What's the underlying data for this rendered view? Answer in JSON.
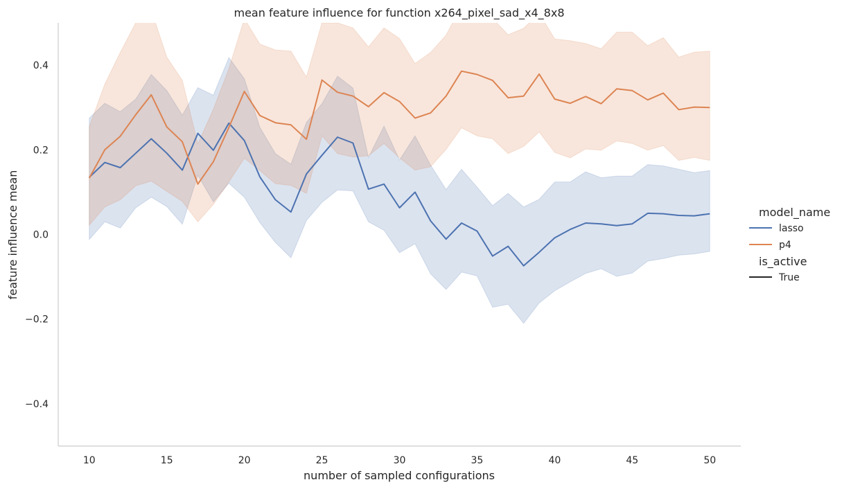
{
  "chart_data": {
    "type": "line",
    "title": "mean feature influence for function x264_pixel_sad_x4_8x8",
    "xlabel": "number of sampled configurations",
    "ylabel": "feature influence mean",
    "xlim": [
      8,
      52
    ],
    "ylim": [
      -0.5,
      0.5
    ],
    "xticks": [
      10,
      15,
      20,
      25,
      30,
      35,
      40,
      45,
      50
    ],
    "yticks": [
      -0.4,
      -0.2,
      0.0,
      0.2,
      0.4
    ],
    "ytick_labels": [
      "−0.4",
      "−0.2",
      "0.0",
      "0.2",
      "0.4"
    ],
    "grid": false,
    "legend": {
      "placement": "right",
      "hue_title": "model_name",
      "style_title": "is_active",
      "style_entries": [
        {
          "label": "True",
          "color": "#262626"
        }
      ]
    },
    "x": [
      10,
      11,
      12,
      13,
      14,
      15,
      16,
      17,
      18,
      19,
      20,
      21,
      22,
      23,
      24,
      25,
      26,
      27,
      28,
      29,
      30,
      31,
      32,
      33,
      34,
      35,
      36,
      37,
      38,
      39,
      40,
      41,
      42,
      43,
      44,
      45,
      46,
      47,
      48,
      49,
      50
    ],
    "series": [
      {
        "name": "lasso",
        "color": "#4c72b0",
        "values": [
          0.135,
          0.17,
          0.158,
          0.192,
          0.226,
          0.192,
          0.152,
          0.239,
          0.199,
          0.263,
          0.222,
          0.136,
          0.082,
          0.053,
          0.143,
          0.187,
          0.23,
          0.216,
          0.107,
          0.119,
          0.063,
          0.1,
          0.032,
          -0.011,
          0.027,
          0.008,
          -0.051,
          -0.028,
          -0.074,
          -0.042,
          -0.008,
          0.012,
          0.027,
          0.025,
          0.021,
          0.025,
          0.05,
          0.049,
          0.045,
          0.044,
          0.049
        ],
        "ci_low": [
          -0.012,
          0.03,
          0.015,
          0.063,
          0.088,
          0.066,
          0.024,
          0.14,
          0.077,
          0.121,
          0.088,
          0.028,
          -0.019,
          -0.055,
          0.033,
          0.076,
          0.105,
          0.103,
          0.03,
          0.01,
          -0.043,
          -0.022,
          -0.093,
          -0.13,
          -0.089,
          -0.098,
          -0.172,
          -0.165,
          -0.21,
          -0.162,
          -0.133,
          -0.112,
          -0.092,
          -0.081,
          -0.099,
          -0.091,
          -0.063,
          -0.057,
          -0.049,
          -0.046,
          -0.04
        ],
        "ci_high": [
          0.275,
          0.31,
          0.29,
          0.32,
          0.378,
          0.34,
          0.282,
          0.347,
          0.329,
          0.418,
          0.368,
          0.253,
          0.191,
          0.166,
          0.265,
          0.309,
          0.374,
          0.346,
          0.182,
          0.256,
          0.176,
          0.233,
          0.164,
          0.106,
          0.154,
          0.112,
          0.068,
          0.097,
          0.065,
          0.083,
          0.124,
          0.124,
          0.148,
          0.134,
          0.138,
          0.138,
          0.165,
          0.162,
          0.154,
          0.146,
          0.151
        ]
      },
      {
        "name": "p4",
        "color": "#dd8452",
        "values": [
          0.133,
          0.2,
          0.232,
          0.283,
          0.33,
          0.254,
          0.219,
          0.119,
          0.172,
          0.253,
          0.338,
          0.281,
          0.264,
          0.259,
          0.225,
          0.365,
          0.336,
          0.327,
          0.302,
          0.335,
          0.314,
          0.275,
          0.287,
          0.327,
          0.386,
          0.378,
          0.364,
          0.323,
          0.327,
          0.379,
          0.32,
          0.31,
          0.326,
          0.309,
          0.344,
          0.34,
          0.318,
          0.334,
          0.295,
          0.301,
          0.3
        ],
        "ci_low": [
          0.022,
          0.065,
          0.082,
          0.115,
          0.126,
          0.102,
          0.078,
          0.03,
          0.071,
          0.124,
          0.18,
          0.151,
          0.12,
          0.116,
          0.097,
          0.233,
          0.191,
          0.183,
          0.186,
          0.215,
          0.181,
          0.152,
          0.16,
          0.201,
          0.252,
          0.233,
          0.226,
          0.191,
          0.208,
          0.242,
          0.194,
          0.181,
          0.202,
          0.199,
          0.221,
          0.215,
          0.199,
          0.21,
          0.175,
          0.182,
          0.175
        ],
        "ci_high": [
          0.255,
          0.355,
          0.43,
          0.5,
          0.53,
          0.419,
          0.364,
          0.214,
          0.296,
          0.392,
          0.51,
          0.45,
          0.436,
          0.433,
          0.372,
          0.5,
          0.5,
          0.488,
          0.443,
          0.488,
          0.463,
          0.404,
          0.43,
          0.471,
          0.54,
          0.515,
          0.51,
          0.472,
          0.487,
          0.523,
          0.462,
          0.458,
          0.451,
          0.439,
          0.478,
          0.478,
          0.446,
          0.465,
          0.419,
          0.431,
          0.433
        ]
      }
    ]
  }
}
